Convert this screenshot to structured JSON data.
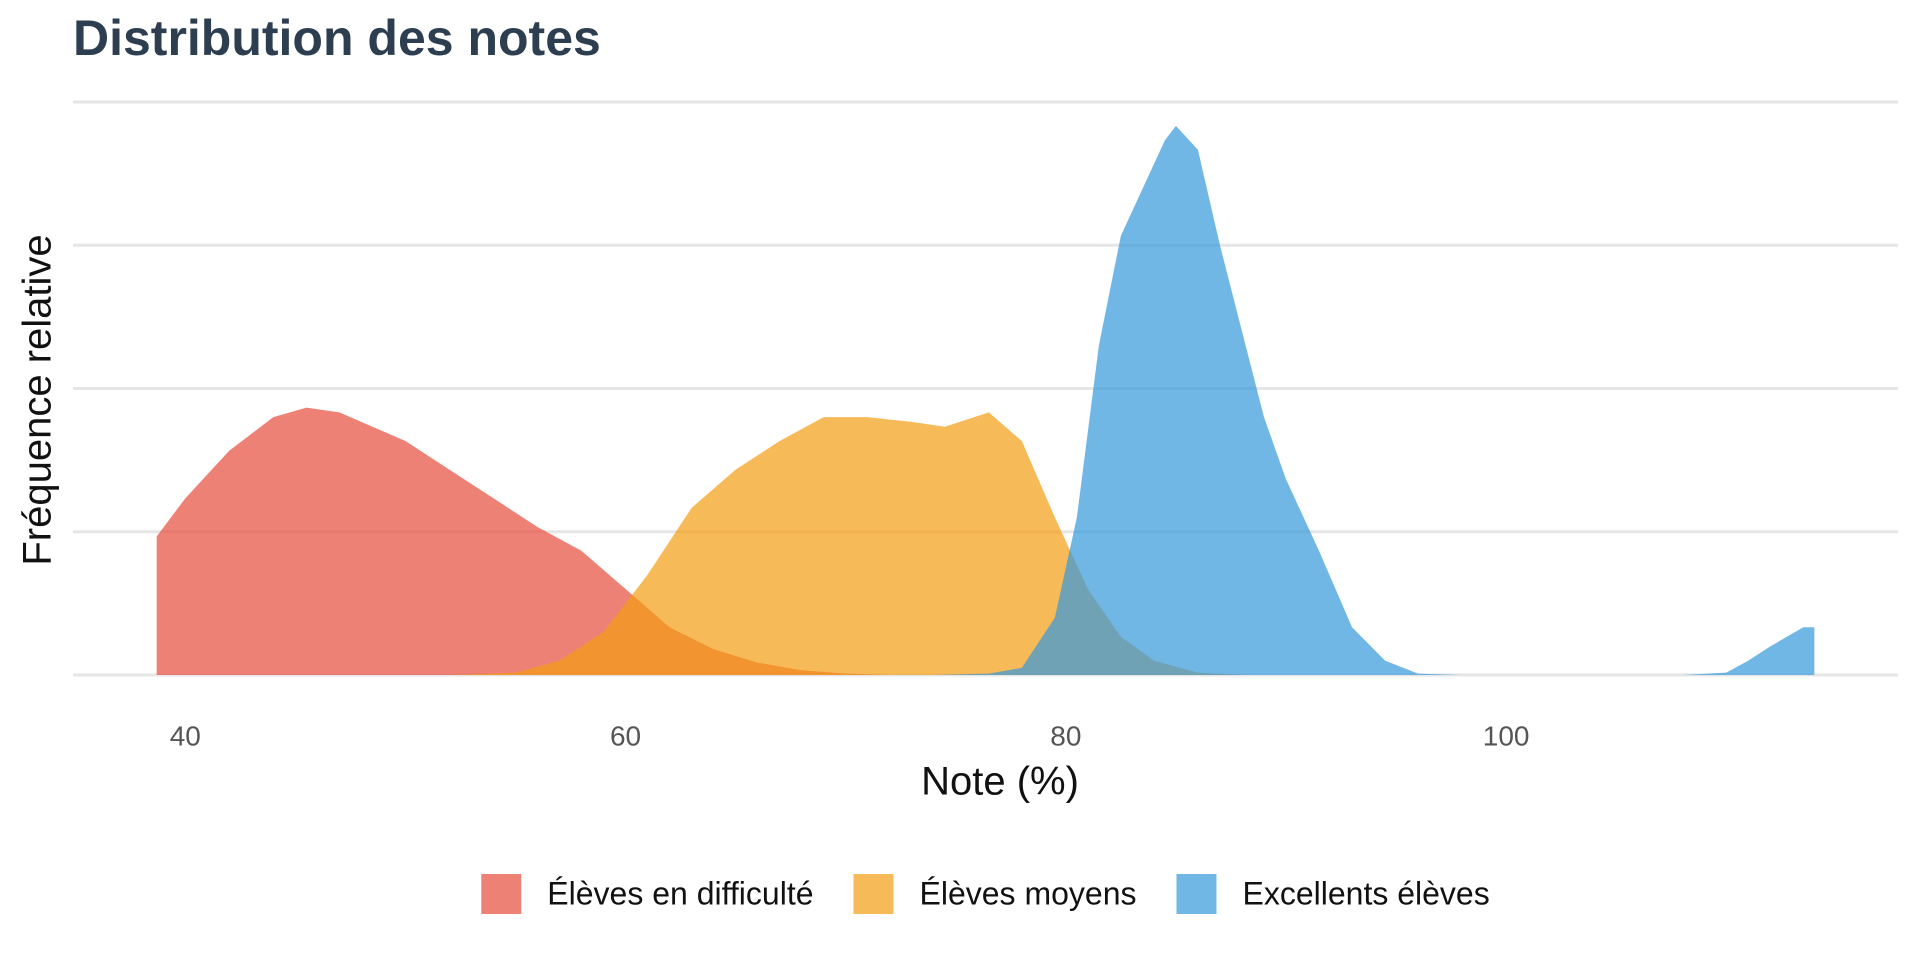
{
  "chart_data": {
    "type": "density",
    "title": "Distribution des notes",
    "x_label": "Note (%)",
    "y_label": "Fréquence relative",
    "xlim": [
      34.9,
      117.8
    ],
    "xticks": [
      40,
      60,
      80,
      100
    ],
    "ylim": [
      0,
      0.12
    ],
    "yticks": [
      0,
      0.03,
      0.06,
      0.09,
      0.12
    ],
    "show_ytick_labels": false,
    "grid": true,
    "opacity": 0.7,
    "legend": "bottom",
    "series": [
      {
        "name": "Élèves en difficulté",
        "color": "#e74c3c",
        "x": [
          38.7,
          40,
          42,
          44,
          45.5,
          47,
          50,
          53,
          56,
          58,
          60,
          62,
          64,
          66,
          68,
          70,
          72
        ],
        "values": [
          0.029,
          0.037,
          0.047,
          0.054,
          0.056,
          0.055,
          0.049,
          0.04,
          0.031,
          0.026,
          0.018,
          0.01,
          0.0054,
          0.0026,
          0.001,
          0.0003,
          0
        ]
      },
      {
        "name": "Élèves moyens",
        "color": "#f39c12",
        "x": [
          52,
          55,
          57,
          59,
          61,
          63,
          65,
          67,
          69,
          71,
          73,
          74.5,
          76.5,
          78,
          79.5,
          81,
          82.5,
          84,
          86,
          88
        ],
        "values": [
          0,
          0.0005,
          0.003,
          0.009,
          0.021,
          0.035,
          0.043,
          0.049,
          0.054,
          0.054,
          0.053,
          0.052,
          0.055,
          0.049,
          0.033,
          0.018,
          0.008,
          0.003,
          0.0005,
          0
        ]
      },
      {
        "name": "Excellents élèves",
        "color": "#3498db",
        "x": [
          74,
          76.5,
          78,
          79.5,
          80.5,
          81.5,
          82.5,
          83.5,
          84.5,
          85,
          86,
          87,
          88,
          89,
          90,
          91.5,
          93,
          94.5,
          96,
          98,
          108,
          110,
          111,
          112,
          113.5,
          114
        ],
        "values": [
          0,
          0.0003,
          0.0015,
          0.012,
          0.033,
          0.069,
          0.092,
          0.102,
          0.112,
          0.115,
          0.11,
          0.09,
          0.072,
          0.054,
          0.041,
          0.026,
          0.01,
          0.003,
          0.0003,
          0,
          0,
          0.0005,
          0.003,
          0.006,
          0.01,
          0.01
        ]
      }
    ]
  }
}
